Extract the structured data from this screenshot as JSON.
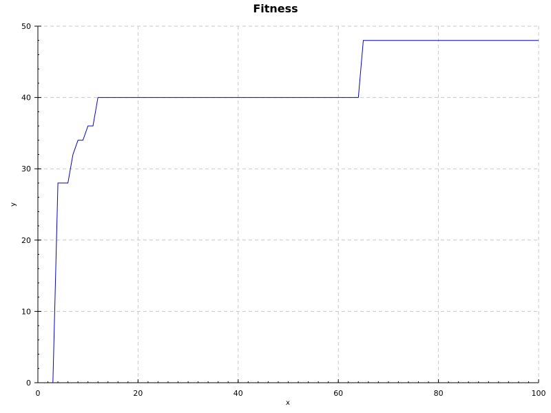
{
  "chart_data": {
    "type": "line",
    "title": "Fitness",
    "xlabel": "x",
    "ylabel": "y",
    "xlim": [
      0,
      100
    ],
    "ylim": [
      0,
      50
    ],
    "xticks": [
      0,
      20,
      40,
      60,
      80,
      100
    ],
    "yticks": [
      0,
      10,
      20,
      30,
      40,
      50
    ],
    "grid": true,
    "colors": {
      "line": "#0000cc",
      "grid": "#c8c8c8",
      "axis": "#000000"
    },
    "series": [
      {
        "x": [
          3,
          4,
          5,
          6,
          7,
          8,
          9,
          10,
          11,
          12,
          13,
          20,
          40,
          60,
          64,
          65,
          80,
          100
        ],
        "y": [
          0,
          28,
          28,
          28,
          32,
          34,
          34,
          36,
          36,
          40,
          40,
          40,
          40,
          40,
          40,
          48,
          48,
          48
        ]
      }
    ]
  }
}
